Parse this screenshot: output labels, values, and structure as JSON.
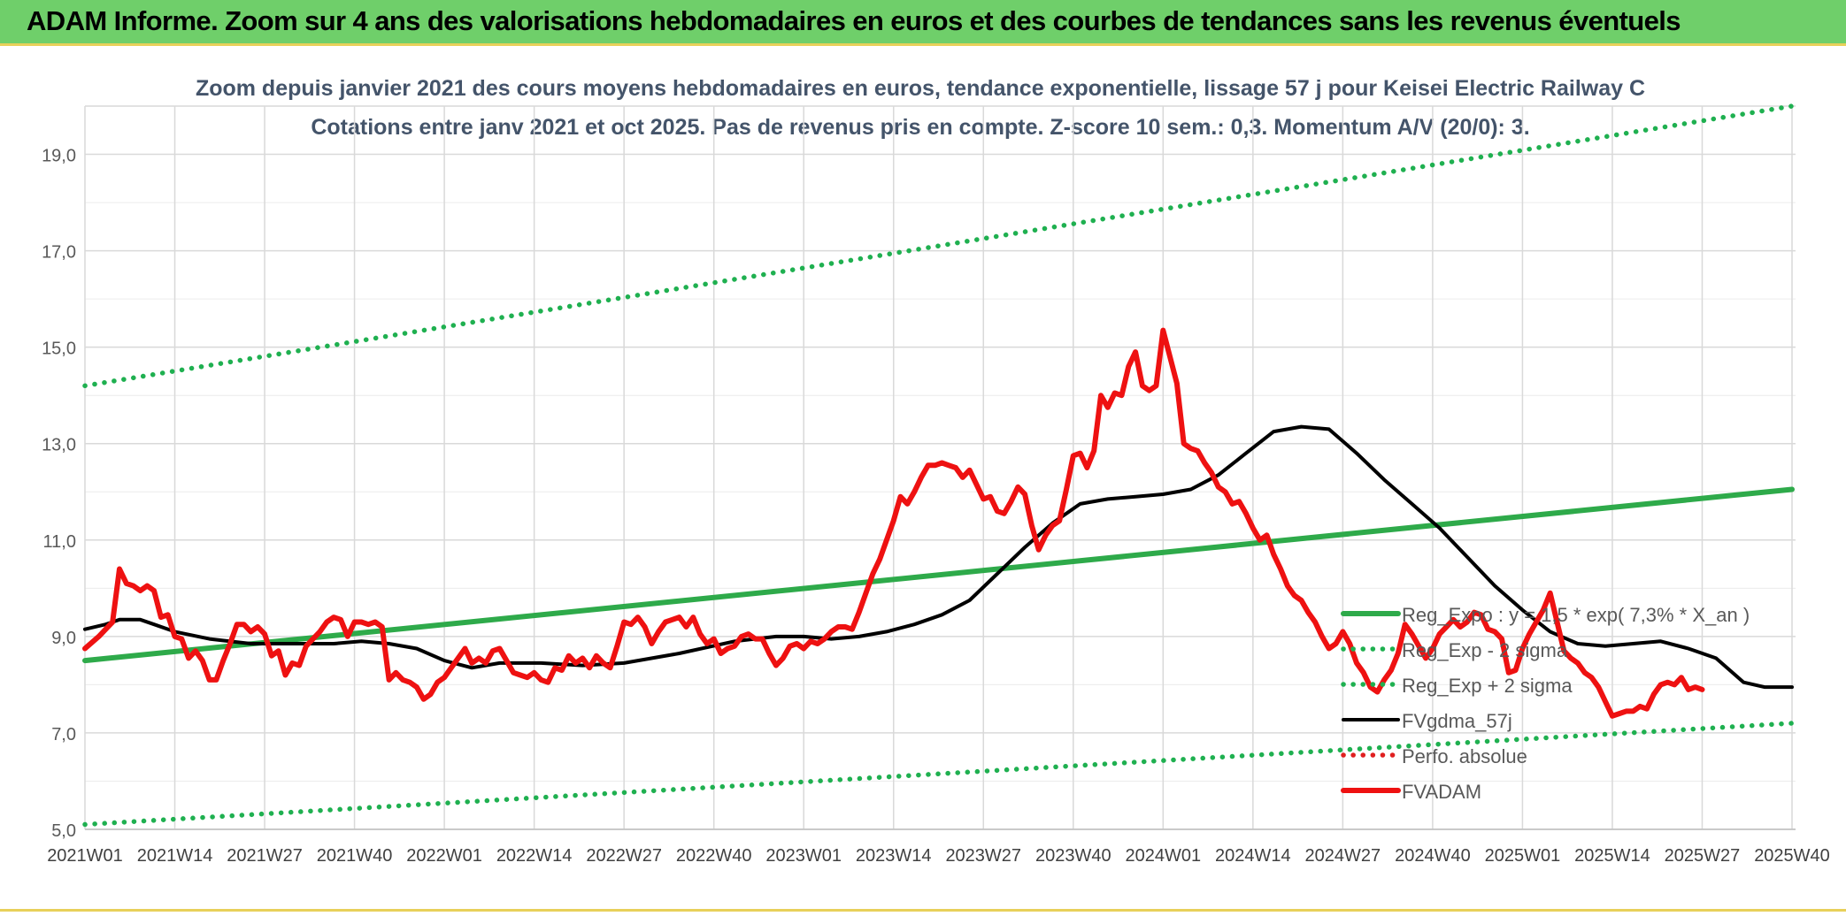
{
  "banner": {
    "title": "ADAM Informe. Zoom sur 4 ans des valorisations hebdomadaires en euros et des courbes de tendances sans les revenus éventuels",
    "color": "#6fcf6a"
  },
  "chart_data": {
    "type": "line",
    "title": "Zoom depuis janvier 2021 des cours moyens hebdomadaires en euros, tendance exponentielle, lissage 57 j pour Keisei Electric Railway C",
    "subtitle": "Cotations entre janv 2021 et oct 2025. Pas de revenus pris en compte. Z-score 10 sem.: 0,3. Momentum A/V (20/0): 3.",
    "xlabel": "",
    "ylabel": "",
    "ylim": [
      5.0,
      20.0
    ],
    "yticks": [
      "5,0",
      "7,0",
      "9,0",
      "11,0",
      "13,0",
      "15,0",
      "17,0",
      "19,0"
    ],
    "ytick_values": [
      5,
      7,
      9,
      11,
      13,
      15,
      17,
      19
    ],
    "xticks": [
      "2021W01",
      "2021W14",
      "2021W27",
      "2021W40",
      "2022W01",
      "2022W14",
      "2022W27",
      "2022W40",
      "2023W01",
      "2023W14",
      "2023W27",
      "2023W40",
      "2024W01",
      "2024W14",
      "2024W27",
      "2024W40",
      "2025W01",
      "2025W14",
      "2025W27",
      "2025W40"
    ],
    "grid": true,
    "legend_position": "right",
    "series": [
      {
        "name": "Reg_Expo : y = 1,5 * exp( 7,3% *  X_an )",
        "style": "solid-thick",
        "color": "#2eaa4a",
        "points": [
          [
            0,
            8.5
          ],
          [
            247,
            12.05
          ]
        ]
      },
      {
        "name": "Reg_Exp - 2 sigma",
        "style": "dotted",
        "color": "#1fb050",
        "points": [
          [
            0,
            5.1
          ],
          [
            247,
            7.2
          ]
        ]
      },
      {
        "name": "Reg_Exp + 2 sigma",
        "style": "dotted",
        "color": "#1fb050",
        "points": [
          [
            0,
            14.2
          ],
          [
            247,
            20.0
          ]
        ]
      },
      {
        "name": "FVgdma_57j",
        "style": "solid",
        "color": "#000000",
        "points": [
          [
            0,
            9.15
          ],
          [
            3,
            9.25
          ],
          [
            5,
            9.35
          ],
          [
            8,
            9.35
          ],
          [
            10,
            9.25
          ],
          [
            13,
            9.1
          ],
          [
            18,
            8.95
          ],
          [
            24,
            8.85
          ],
          [
            30,
            8.85
          ],
          [
            36,
            8.85
          ],
          [
            40,
            8.9
          ],
          [
            44,
            8.85
          ],
          [
            48,
            8.75
          ],
          [
            52,
            8.5
          ],
          [
            56,
            8.35
          ],
          [
            60,
            8.45
          ],
          [
            66,
            8.45
          ],
          [
            72,
            8.4
          ],
          [
            78,
            8.45
          ],
          [
            86,
            8.65
          ],
          [
            94,
            8.9
          ],
          [
            100,
            9.0
          ],
          [
            104,
            9.0
          ],
          [
            108,
            8.95
          ],
          [
            112,
            9.0
          ],
          [
            116,
            9.1
          ],
          [
            120,
            9.25
          ],
          [
            124,
            9.45
          ],
          [
            128,
            9.75
          ],
          [
            132,
            10.3
          ],
          [
            136,
            10.85
          ],
          [
            140,
            11.35
          ],
          [
            144,
            11.75
          ],
          [
            148,
            11.85
          ],
          [
            152,
            11.9
          ],
          [
            156,
            11.95
          ],
          [
            160,
            12.05
          ],
          [
            164,
            12.35
          ],
          [
            168,
            12.8
          ],
          [
            172,
            13.25
          ],
          [
            176,
            13.35
          ],
          [
            180,
            13.3
          ],
          [
            184,
            12.8
          ],
          [
            188,
            12.25
          ],
          [
            192,
            11.75
          ],
          [
            196,
            11.25
          ],
          [
            200,
            10.65
          ],
          [
            204,
            10.05
          ],
          [
            208,
            9.55
          ],
          [
            212,
            9.1
          ],
          [
            216,
            8.85
          ],
          [
            220,
            8.8
          ],
          [
            224,
            8.85
          ],
          [
            228,
            8.9
          ],
          [
            232,
            8.75
          ],
          [
            236,
            8.55
          ],
          [
            240,
            8.05
          ],
          [
            243,
            7.95
          ],
          [
            247,
            7.95
          ]
        ]
      },
      {
        "name": "Perfo. absolue",
        "style": "dotted",
        "color": "#e02020",
        "points": []
      },
      {
        "name": "FVADAM",
        "style": "solid-thick",
        "color": "#ee1111",
        "points": [
          [
            0,
            8.75
          ],
          [
            2,
            9.0
          ],
          [
            4,
            9.3
          ],
          [
            5,
            10.4
          ],
          [
            6,
            10.1
          ],
          [
            7,
            10.05
          ],
          [
            8,
            9.95
          ],
          [
            9,
            10.05
          ],
          [
            10,
            9.95
          ],
          [
            11,
            9.4
          ],
          [
            12,
            9.45
          ],
          [
            13,
            9.0
          ],
          [
            14,
            8.95
          ],
          [
            15,
            8.55
          ],
          [
            16,
            8.7
          ],
          [
            17,
            8.5
          ],
          [
            18,
            8.1
          ],
          [
            19,
            8.1
          ],
          [
            20,
            8.5
          ],
          [
            21,
            8.85
          ],
          [
            22,
            9.25
          ],
          [
            23,
            9.25
          ],
          [
            24,
            9.1
          ],
          [
            25,
            9.2
          ],
          [
            26,
            9.05
          ],
          [
            27,
            8.6
          ],
          [
            28,
            8.7
          ],
          [
            29,
            8.2
          ],
          [
            30,
            8.45
          ],
          [
            31,
            8.4
          ],
          [
            32,
            8.8
          ],
          [
            33,
            8.95
          ],
          [
            34,
            9.1
          ],
          [
            35,
            9.3
          ],
          [
            36,
            9.4
          ],
          [
            37,
            9.35
          ],
          [
            38,
            9.0
          ],
          [
            39,
            9.3
          ],
          [
            40,
            9.3
          ],
          [
            41,
            9.25
          ],
          [
            42,
            9.3
          ],
          [
            43,
            9.2
          ],
          [
            44,
            8.1
          ],
          [
            45,
            8.25
          ],
          [
            46,
            8.1
          ],
          [
            47,
            8.05
          ],
          [
            48,
            7.95
          ],
          [
            49,
            7.7
          ],
          [
            50,
            7.8
          ],
          [
            51,
            8.05
          ],
          [
            52,
            8.15
          ],
          [
            53,
            8.35
          ],
          [
            54,
            8.55
          ],
          [
            55,
            8.75
          ],
          [
            56,
            8.45
          ],
          [
            57,
            8.55
          ],
          [
            58,
            8.45
          ],
          [
            59,
            8.7
          ],
          [
            60,
            8.75
          ],
          [
            61,
            8.5
          ],
          [
            62,
            8.25
          ],
          [
            63,
            8.2
          ],
          [
            64,
            8.15
          ],
          [
            65,
            8.25
          ],
          [
            66,
            8.1
          ],
          [
            67,
            8.05
          ],
          [
            68,
            8.35
          ],
          [
            69,
            8.3
          ],
          [
            70,
            8.6
          ],
          [
            71,
            8.45
          ],
          [
            72,
            8.55
          ],
          [
            73,
            8.35
          ],
          [
            74,
            8.6
          ],
          [
            75,
            8.45
          ],
          [
            76,
            8.35
          ],
          [
            77,
            8.8
          ],
          [
            78,
            9.3
          ],
          [
            79,
            9.25
          ],
          [
            80,
            9.4
          ],
          [
            81,
            9.2
          ],
          [
            82,
            8.85
          ],
          [
            83,
            9.1
          ],
          [
            84,
            9.3
          ],
          [
            85,
            9.35
          ],
          [
            86,
            9.4
          ],
          [
            87,
            9.2
          ],
          [
            88,
            9.4
          ],
          [
            89,
            9.05
          ],
          [
            90,
            8.85
          ],
          [
            91,
            8.95
          ],
          [
            92,
            8.65
          ],
          [
            93,
            8.75
          ],
          [
            94,
            8.8
          ],
          [
            95,
            9.0
          ],
          [
            96,
            9.05
          ],
          [
            97,
            8.95
          ],
          [
            98,
            8.95
          ],
          [
            99,
            8.65
          ],
          [
            100,
            8.4
          ],
          [
            101,
            8.55
          ],
          [
            102,
            8.8
          ],
          [
            103,
            8.85
          ],
          [
            104,
            8.75
          ],
          [
            105,
            8.9
          ],
          [
            106,
            8.85
          ],
          [
            107,
            8.95
          ],
          [
            108,
            9.1
          ],
          [
            109,
            9.2
          ],
          [
            110,
            9.2
          ],
          [
            111,
            9.15
          ],
          [
            112,
            9.5
          ],
          [
            113,
            9.9
          ],
          [
            114,
            10.3
          ],
          [
            115,
            10.6
          ],
          [
            116,
            11.0
          ],
          [
            117,
            11.4
          ],
          [
            118,
            11.9
          ],
          [
            119,
            11.75
          ],
          [
            120,
            12.0
          ],
          [
            121,
            12.3
          ],
          [
            122,
            12.55
          ],
          [
            123,
            12.55
          ],
          [
            124,
            12.6
          ],
          [
            125,
            12.55
          ],
          [
            126,
            12.5
          ],
          [
            127,
            12.3
          ],
          [
            128,
            12.45
          ],
          [
            129,
            12.15
          ],
          [
            130,
            11.85
          ],
          [
            131,
            11.9
          ],
          [
            132,
            11.6
          ],
          [
            133,
            11.55
          ],
          [
            134,
            11.8
          ],
          [
            135,
            12.1
          ],
          [
            136,
            11.95
          ],
          [
            137,
            11.3
          ],
          [
            138,
            10.8
          ],
          [
            139,
            11.1
          ],
          [
            140,
            11.3
          ],
          [
            141,
            11.4
          ],
          [
            142,
            12.05
          ],
          [
            143,
            12.75
          ],
          [
            144,
            12.8
          ],
          [
            145,
            12.5
          ],
          [
            146,
            12.85
          ],
          [
            147,
            14.0
          ],
          [
            148,
            13.75
          ],
          [
            149,
            14.05
          ],
          [
            150,
            14.0
          ],
          [
            151,
            14.6
          ],
          [
            152,
            14.9
          ],
          [
            153,
            14.2
          ],
          [
            154,
            14.1
          ],
          [
            155,
            14.2
          ],
          [
            156,
            15.35
          ],
          [
            157,
            14.8
          ],
          [
            158,
            14.25
          ],
          [
            159,
            13.0
          ],
          [
            160,
            12.9
          ],
          [
            161,
            12.85
          ],
          [
            162,
            12.6
          ],
          [
            163,
            12.4
          ],
          [
            164,
            12.1
          ],
          [
            165,
            12.0
          ],
          [
            166,
            11.75
          ],
          [
            167,
            11.8
          ],
          [
            168,
            11.55
          ],
          [
            169,
            11.25
          ],
          [
            170,
            11.0
          ],
          [
            171,
            11.1
          ],
          [
            172,
            10.7
          ],
          [
            173,
            10.4
          ],
          [
            174,
            10.05
          ],
          [
            175,
            9.85
          ],
          [
            176,
            9.75
          ],
          [
            177,
            9.5
          ],
          [
            178,
            9.3
          ],
          [
            179,
            9.0
          ],
          [
            180,
            8.75
          ],
          [
            181,
            8.85
          ],
          [
            182,
            9.1
          ],
          [
            183,
            8.85
          ],
          [
            184,
            8.45
          ],
          [
            185,
            8.25
          ],
          [
            186,
            7.95
          ],
          [
            187,
            7.85
          ],
          [
            188,
            8.1
          ],
          [
            189,
            8.3
          ],
          [
            190,
            8.65
          ],
          [
            191,
            9.25
          ],
          [
            192,
            9.05
          ],
          [
            193,
            8.8
          ],
          [
            194,
            8.55
          ],
          [
            195,
            8.75
          ],
          [
            196,
            9.05
          ],
          [
            197,
            9.2
          ],
          [
            198,
            9.35
          ],
          [
            199,
            9.2
          ],
          [
            200,
            9.3
          ],
          [
            201,
            9.5
          ],
          [
            202,
            9.45
          ],
          [
            203,
            9.15
          ],
          [
            204,
            9.1
          ],
          [
            205,
            8.95
          ],
          [
            206,
            8.25
          ],
          [
            207,
            8.3
          ],
          [
            208,
            8.75
          ],
          [
            209,
            9.05
          ],
          [
            210,
            9.3
          ],
          [
            211,
            9.55
          ],
          [
            212,
            9.9
          ],
          [
            213,
            9.3
          ],
          [
            214,
            8.7
          ],
          [
            215,
            8.55
          ],
          [
            216,
            8.45
          ],
          [
            217,
            8.25
          ],
          [
            218,
            8.15
          ],
          [
            219,
            7.95
          ],
          [
            220,
            7.65
          ],
          [
            221,
            7.35
          ],
          [
            222,
            7.4
          ],
          [
            223,
            7.45
          ],
          [
            224,
            7.45
          ],
          [
            225,
            7.55
          ],
          [
            226,
            7.5
          ],
          [
            227,
            7.8
          ],
          [
            228,
            8.0
          ],
          [
            229,
            8.05
          ],
          [
            230,
            8.0
          ],
          [
            231,
            8.15
          ],
          [
            232,
            7.9
          ],
          [
            233,
            7.95
          ],
          [
            234,
            7.9
          ]
        ]
      }
    ]
  }
}
